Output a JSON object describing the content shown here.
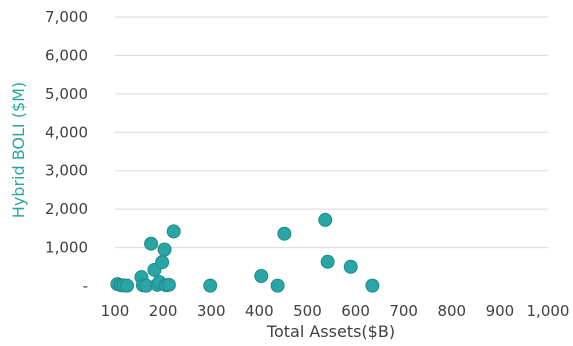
{
  "chart_data": {
    "type": "scatter",
    "xlabel": "Total Assets($B)",
    "ylabel": "Hybrid BOLI ($M)",
    "xlim": [
      100,
      1000
    ],
    "ylim": [
      0,
      7000
    ],
    "x_ticks": [
      100,
      200,
      300,
      400,
      500,
      600,
      700,
      800,
      900,
      1000
    ],
    "x_tick_labels": [
      "100",
      "200",
      "300",
      "400",
      "500",
      "600",
      "700",
      "800",
      "900",
      "1,000"
    ],
    "y_ticks": [
      0,
      1000,
      2000,
      3000,
      4000,
      5000,
      6000,
      7000
    ],
    "y_tick_labels": [
      "-",
      "1,000",
      "2,000",
      "3,000",
      "4,000",
      "5,000",
      "6,000",
      "7,000"
    ],
    "grid": true,
    "marker_color": "#2AA5A5",
    "marker_edge_color": "#1f8a8a",
    "points": [
      {
        "x": 105,
        "y": 50
      },
      {
        "x": 112,
        "y": 20
      },
      {
        "x": 118,
        "y": 15
      },
      {
        "x": 125,
        "y": 10
      },
      {
        "x": 155,
        "y": 230
      },
      {
        "x": 158,
        "y": 20
      },
      {
        "x": 165,
        "y": 10
      },
      {
        "x": 175,
        "y": 1100
      },
      {
        "x": 182,
        "y": 420
      },
      {
        "x": 188,
        "y": 30
      },
      {
        "x": 192,
        "y": 100
      },
      {
        "x": 198,
        "y": 620
      },
      {
        "x": 203,
        "y": 950
      },
      {
        "x": 206,
        "y": 20
      },
      {
        "x": 212,
        "y": 30
      },
      {
        "x": 222,
        "y": 1420
      },
      {
        "x": 298,
        "y": 10
      },
      {
        "x": 404,
        "y": 260
      },
      {
        "x": 438,
        "y": 10
      },
      {
        "x": 452,
        "y": 1360
      },
      {
        "x": 537,
        "y": 1720
      },
      {
        "x": 542,
        "y": 630
      },
      {
        "x": 590,
        "y": 500
      },
      {
        "x": 635,
        "y": 10
      }
    ]
  }
}
